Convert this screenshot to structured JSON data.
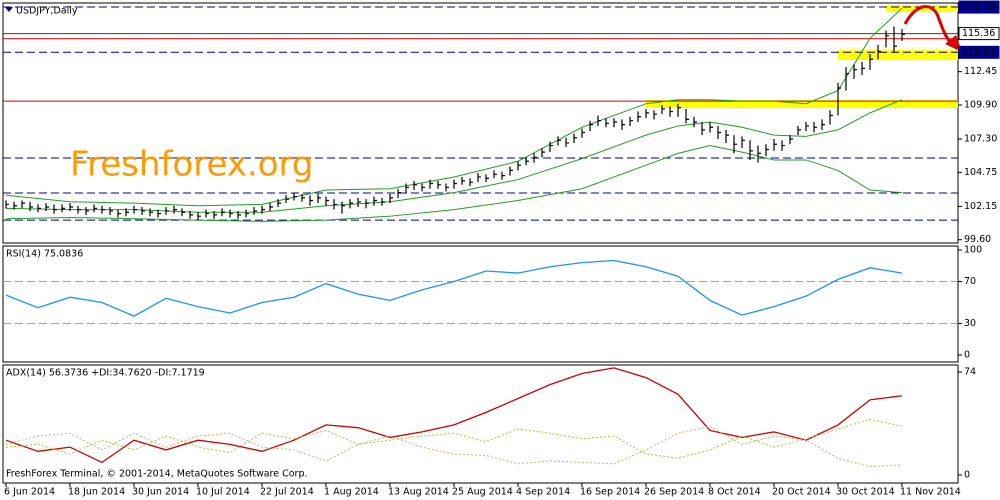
{
  "chart_data": [
    {
      "type": "ohlc",
      "title": "USDJPY,Daily",
      "watermark": "Freshforex.org",
      "xlim": [
        -0.375,
        119
      ],
      "ylim": [
        99.35,
        117.7
      ],
      "yticks": [
        {
          "value": 99.6,
          "label": "99.60"
        },
        102.15,
        104.75,
        {
          "value": 107.3,
          "label": "107.30"
        },
        {
          "value": 109.9,
          "label": "109.90"
        },
        112.45
      ],
      "bar_color": "#000000",
      "close": [
        102.3,
        102.2,
        102.4,
        102.1,
        102.0,
        102.1,
        101.9,
        102.0,
        102.1,
        101.9,
        101.8,
        102.0,
        101.9,
        101.8,
        101.6,
        101.7,
        101.9,
        101.8,
        101.7,
        101.6,
        101.8,
        101.9,
        101.7,
        101.5,
        101.4,
        101.6,
        101.5,
        101.7,
        101.6,
        101.5,
        101.6,
        101.8,
        101.9,
        102.1,
        102.4,
        102.7,
        102.9,
        102.8,
        102.6,
        102.8,
        102.6,
        102.3,
        102.2,
        102.4,
        102.5,
        102.4,
        102.6,
        102.5,
        102.8,
        103.2,
        103.6,
        103.8,
        103.6,
        103.9,
        103.8,
        103.6,
        103.9,
        104.1,
        104.0,
        104.4,
        104.3,
        104.6,
        104.5,
        104.9,
        105.3,
        105.6,
        105.9,
        106.3,
        106.8,
        107.2,
        107.0,
        107.4,
        107.8,
        108.4,
        108.7,
        108.5,
        108.6,
        108.4,
        108.7,
        109.0,
        109.3,
        109.2,
        109.6,
        109.4,
        109.7,
        108.8,
        108.6,
        108.0,
        108.2,
        107.8,
        107.6,
        106.9,
        107.2,
        106.4,
        106.2,
        106.5,
        106.9,
        106.8,
        107.3,
        108.0,
        108.3,
        108.2,
        108.4,
        109.1,
        111.2,
        112.3,
        112.6,
        112.7,
        113.4,
        114.0,
        115.2,
        114.4,
        115.3
      ],
      "high": [
        102.6,
        102.5,
        102.6,
        102.5,
        102.3,
        102.4,
        102.3,
        102.3,
        102.4,
        102.2,
        102.1,
        102.3,
        102.2,
        102.1,
        101.9,
        102.0,
        102.2,
        102.1,
        102.0,
        101.9,
        102.1,
        102.2,
        102.0,
        101.8,
        101.7,
        101.9,
        101.8,
        102.0,
        101.9,
        101.8,
        101.9,
        102.1,
        102.2,
        102.4,
        102.7,
        103.0,
        103.2,
        103.1,
        103.0,
        103.1,
        102.9,
        102.7,
        102.5,
        102.7,
        102.8,
        102.7,
        102.9,
        102.8,
        103.1,
        103.5,
        103.9,
        104.1,
        103.9,
        104.2,
        104.1,
        103.9,
        104.2,
        104.4,
        104.3,
        104.7,
        104.6,
        104.9,
        104.8,
        105.2,
        105.6,
        105.9,
        106.2,
        106.6,
        107.1,
        107.5,
        107.4,
        107.7,
        108.1,
        108.7,
        109.1,
        108.9,
        108.9,
        108.8,
        109.0,
        109.4,
        109.6,
        109.5,
        109.9,
        109.8,
        110.0,
        109.6,
        109.0,
        108.6,
        108.6,
        108.3,
        108.0,
        107.6,
        107.5,
        107.2,
        106.8,
        106.9,
        107.3,
        107.2,
        107.6,
        108.3,
        108.6,
        108.6,
        108.8,
        109.5,
        111.6,
        112.8,
        113.0,
        113.2,
        113.8,
        114.5,
        115.6,
        115.9,
        115.7
      ],
      "low": [
        102.0,
        101.9,
        102.0,
        101.8,
        101.7,
        101.8,
        101.6,
        101.7,
        101.8,
        101.6,
        101.5,
        101.7,
        101.6,
        101.5,
        101.3,
        101.4,
        101.6,
        101.5,
        101.4,
        101.3,
        101.5,
        101.6,
        101.4,
        101.2,
        101.1,
        101.3,
        101.2,
        101.4,
        101.3,
        101.2,
        101.3,
        101.5,
        101.6,
        101.8,
        102.1,
        102.4,
        102.6,
        102.5,
        102.2,
        102.4,
        102.2,
        101.9,
        101.6,
        102.0,
        102.1,
        102.0,
        102.2,
        102.2,
        102.4,
        102.8,
        103.2,
        103.4,
        103.3,
        103.5,
        103.5,
        103.3,
        103.5,
        103.8,
        103.7,
        104.0,
        104.0,
        104.3,
        104.2,
        104.5,
        104.9,
        105.3,
        105.5,
        105.9,
        106.3,
        106.8,
        106.7,
        107.0,
        107.4,
        107.9,
        108.3,
        108.2,
        108.2,
        108.0,
        108.3,
        108.6,
        108.9,
        108.8,
        109.2,
        109.0,
        109.0,
        108.5,
        108.2,
        107.6,
        107.8,
        107.3,
        107.0,
        106.2,
        106.6,
        105.7,
        105.5,
        106.0,
        106.4,
        106.4,
        106.9,
        107.6,
        107.9,
        107.8,
        108.0,
        108.4,
        109.1,
        111.0,
        111.9,
        112.2,
        112.6,
        113.4,
        114.3,
        113.9,
        114.8
      ],
      "bands": {
        "color": "#1e9e1e",
        "x": [
          0,
          8,
          16,
          24,
          32,
          40,
          48,
          56,
          64,
          72,
          80,
          84,
          88,
          92,
          96,
          100,
          104,
          108,
          112
        ],
        "upper": [
          103.0,
          102.5,
          102.4,
          102.2,
          102.3,
          103.4,
          103.5,
          104.4,
          105.6,
          108.2,
          110.0,
          110.3,
          110.3,
          110.2,
          110.2,
          110.0,
          111.0,
          115.0,
          117.3
        ],
        "middle": [
          102.0,
          101.9,
          101.9,
          101.7,
          101.7,
          102.2,
          102.5,
          103.2,
          104.2,
          105.8,
          107.6,
          108.3,
          108.6,
          108.2,
          107.6,
          107.5,
          108.0,
          109.3,
          110.3
        ],
        "lower": [
          101.2,
          101.3,
          101.2,
          101.1,
          101.0,
          101.1,
          101.4,
          101.9,
          102.6,
          103.5,
          105.3,
          106.2,
          106.8,
          106.3,
          105.7,
          105.7,
          104.9,
          103.4,
          103.2
        ]
      },
      "zone_color": "#ffff00",
      "zones": [
        {
          "x": 80,
          "low": 109.67,
          "high": 110.28
        },
        {
          "x": 104,
          "low": 113.34,
          "high": 114.1
        },
        {
          "x": 110,
          "low": 117.01,
          "high": 117.55
        }
      ],
      "levels": [
        {
          "value": 117.39,
          "label": "117.39",
          "color": "#00008b",
          "style": "dashed",
          "tag": "filled"
        },
        {
          "value": 115.36,
          "label": "115.36",
          "color": "#cc0000",
          "style": "solid",
          "tag": "plain"
        },
        {
          "value": 114.97,
          "color": "#cc0000",
          "style": "solid"
        },
        {
          "value": 113.93,
          "label": "113.93",
          "color": "#00008b",
          "style": "dashed",
          "tag": "filled"
        },
        {
          "value": 110.2,
          "color": "#cc0000",
          "style": "solid"
        },
        {
          "value": 105.85,
          "color": "#00008b",
          "style": "dashed"
        },
        {
          "value": 103.17,
          "color": "#00008b",
          "style": "dashed"
        },
        {
          "value": 101.1,
          "color": "#00008b",
          "style": "dashed"
        }
      ]
    },
    {
      "type": "line",
      "title": "RSI(14) 75.0836",
      "xlim": [
        -0.375,
        119
      ],
      "ylim": [
        -6.7,
        103.8
      ],
      "yticks": [
        0,
        30,
        70,
        100
      ],
      "levels": [
        30,
        70
      ],
      "x": [
        0,
        4,
        8,
        12,
        16,
        20,
        24,
        28,
        32,
        36,
        40,
        44,
        48,
        52,
        56,
        60,
        64,
        68,
        72,
        76,
        80,
        84,
        88,
        92,
        96,
        100,
        104,
        108,
        112
      ],
      "series": [
        {
          "color": "#1e90ff",
          "style": "solid",
          "values": [
            57,
            45,
            55,
            50,
            37,
            54,
            46,
            40,
            50,
            55,
            68,
            58,
            52,
            62,
            70,
            80,
            78,
            84,
            88,
            90,
            84,
            75,
            52,
            38,
            46,
            56,
            72,
            83,
            78
          ]
        }
      ]
    },
    {
      "type": "line",
      "title": "ADX(14) 56.3736 +DI:34.7620 -DI:7.1719",
      "footer": "FreshForex Terminal, © 2001-2014, MetaQuotes Software Corp.",
      "xlim": [
        -0.375,
        119
      ],
      "ylim": [
        -5.8,
        79.1
      ],
      "yticks": [
        0,
        74
      ],
      "xticks": [
        {
          "value": 0,
          "label": "6 Jun 2014"
        },
        {
          "value": 8,
          "label": "18 Jun 2014"
        },
        {
          "value": 16,
          "label": "30 Jun 2014"
        },
        {
          "value": 24,
          "label": "10 Jul 2014"
        },
        {
          "value": 32,
          "label": "22 Jul 2014"
        },
        {
          "value": 40,
          "label": "1 Aug 2014"
        },
        {
          "value": 48,
          "label": "13 Aug 2014"
        },
        {
          "value": 56,
          "label": "25 Aug 2014"
        },
        {
          "value": 64,
          "label": "4 Sep 2014"
        },
        {
          "value": 72,
          "label": "16 Sep 2014"
        },
        {
          "value": 80,
          "label": "26 Sep 2014"
        },
        {
          "value": 88,
          "label": "8 Oct 2014"
        },
        {
          "value": 96,
          "label": "20 Oct 2014"
        },
        {
          "value": 104,
          "label": "30 Oct 2014"
        },
        {
          "value": 112,
          "label": "11 Nov 2014"
        }
      ],
      "x": [
        0,
        4,
        8,
        12,
        16,
        20,
        24,
        28,
        32,
        36,
        40,
        44,
        48,
        52,
        56,
        60,
        64,
        68,
        72,
        76,
        80,
        84,
        88,
        92,
        96,
        100,
        104,
        108,
        112
      ],
      "series": [
        {
          "color": "#cc0000",
          "style": "solid",
          "values": [
            25,
            17,
            20,
            9,
            25,
            18,
            25,
            22,
            17,
            25,
            36,
            34,
            27,
            31,
            36,
            45,
            55,
            65,
            73,
            77,
            70,
            58,
            32,
            27,
            31,
            25,
            36,
            54,
            57
          ]
        },
        {
          "color": "#9acd32",
          "style": "dotted",
          "values": [
            20,
            22,
            15,
            25,
            18,
            28,
            20,
            16,
            30,
            26,
            32,
            22,
            25,
            28,
            30,
            24,
            33,
            30,
            26,
            28,
            15,
            12,
            18,
            28,
            20,
            26,
            33,
            40,
            35
          ]
        },
        {
          "color": "#c8b070",
          "style": "dotted",
          "values": [
            22,
            28,
            30,
            18,
            30,
            20,
            28,
            30,
            20,
            18,
            10,
            22,
            28,
            20,
            15,
            14,
            8,
            10,
            9,
            8,
            18,
            30,
            35,
            22,
            28,
            25,
            12,
            6,
            7
          ]
        }
      ]
    }
  ]
}
